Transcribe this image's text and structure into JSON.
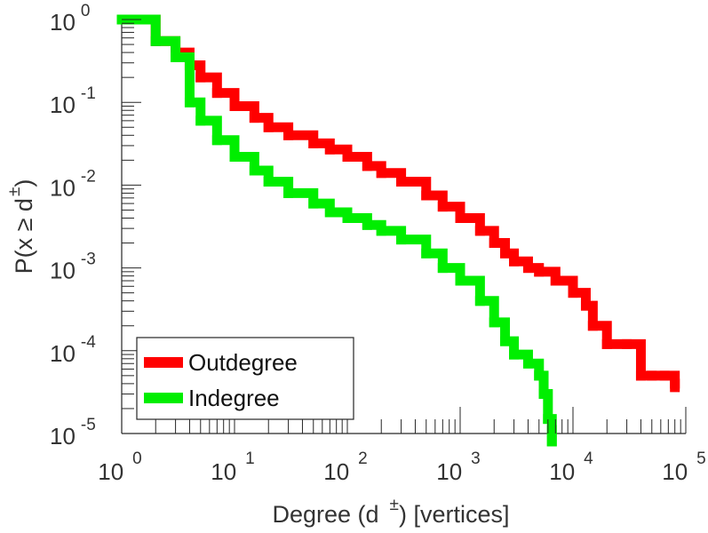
{
  "chart_data": {
    "type": "line",
    "xscale": "log",
    "yscale": "log",
    "xlim": [
      1,
      100000
    ],
    "ylim": [
      1e-05,
      1
    ],
    "xlabel": {
      "main": "Degree (d",
      "sup": "±",
      "rest": ") [vertices]"
    },
    "ylabel": {
      "main": "P(x ≥ d",
      "sup": "±",
      "rest": ")"
    },
    "x_ticks": [
      {
        "base": "10",
        "exp": "0"
      },
      {
        "base": "10",
        "exp": "1"
      },
      {
        "base": "10",
        "exp": "2"
      },
      {
        "base": "10",
        "exp": "3"
      },
      {
        "base": "10",
        "exp": "4"
      },
      {
        "base": "10",
        "exp": "5"
      }
    ],
    "y_ticks": [
      {
        "base": "10",
        "exp": "0"
      },
      {
        "base": "10",
        "exp": "-1"
      },
      {
        "base": "10",
        "exp": "-2"
      },
      {
        "base": "10",
        "exp": "-3"
      },
      {
        "base": "10",
        "exp": "-4"
      },
      {
        "base": "10",
        "exp": "-5"
      }
    ],
    "grid": false,
    "legend_position": "bottom-left",
    "series": [
      {
        "name": "Outdegree",
        "color": "#ff0000",
        "x": [
          1,
          2,
          3,
          4,
          5,
          7,
          10,
          15,
          20,
          30,
          50,
          70,
          100,
          150,
          200,
          300,
          500,
          700,
          1000,
          1500,
          2000,
          2500,
          3000,
          4000,
          5000,
          7000,
          10000,
          13000,
          15000,
          20000,
          30000,
          40000,
          50000,
          65000,
          80000
        ],
        "y": [
          1,
          0.55,
          0.4,
          0.28,
          0.2,
          0.13,
          0.09,
          0.065,
          0.05,
          0.04,
          0.032,
          0.027,
          0.022,
          0.017,
          0.014,
          0.011,
          0.0075,
          0.0055,
          0.004,
          0.0028,
          0.002,
          0.0015,
          0.0012,
          0.001,
          0.0009,
          0.0007,
          0.0005,
          0.00035,
          0.0002,
          0.00012,
          0.00012,
          5e-05,
          5e-05,
          5e-05,
          4e-05
        ]
      },
      {
        "name": "Indegree",
        "color": "#00ee00",
        "x": [
          1,
          2,
          3,
          4,
          5,
          7,
          10,
          15,
          20,
          30,
          50,
          70,
          100,
          150,
          200,
          300,
          500,
          700,
          1000,
          1500,
          2000,
          2500,
          3000,
          4000,
          5000,
          5500,
          6000,
          6500
        ],
        "y": [
          1,
          0.55,
          0.35,
          0.1,
          0.06,
          0.035,
          0.022,
          0.015,
          0.011,
          0.008,
          0.006,
          0.0047,
          0.004,
          0.0033,
          0.0028,
          0.0022,
          0.0015,
          0.001,
          0.0007,
          0.0004,
          0.00022,
          0.00013,
          9e-05,
          7e-05,
          5e-05,
          3e-05,
          1.5e-05,
          8e-06
        ]
      }
    ]
  }
}
